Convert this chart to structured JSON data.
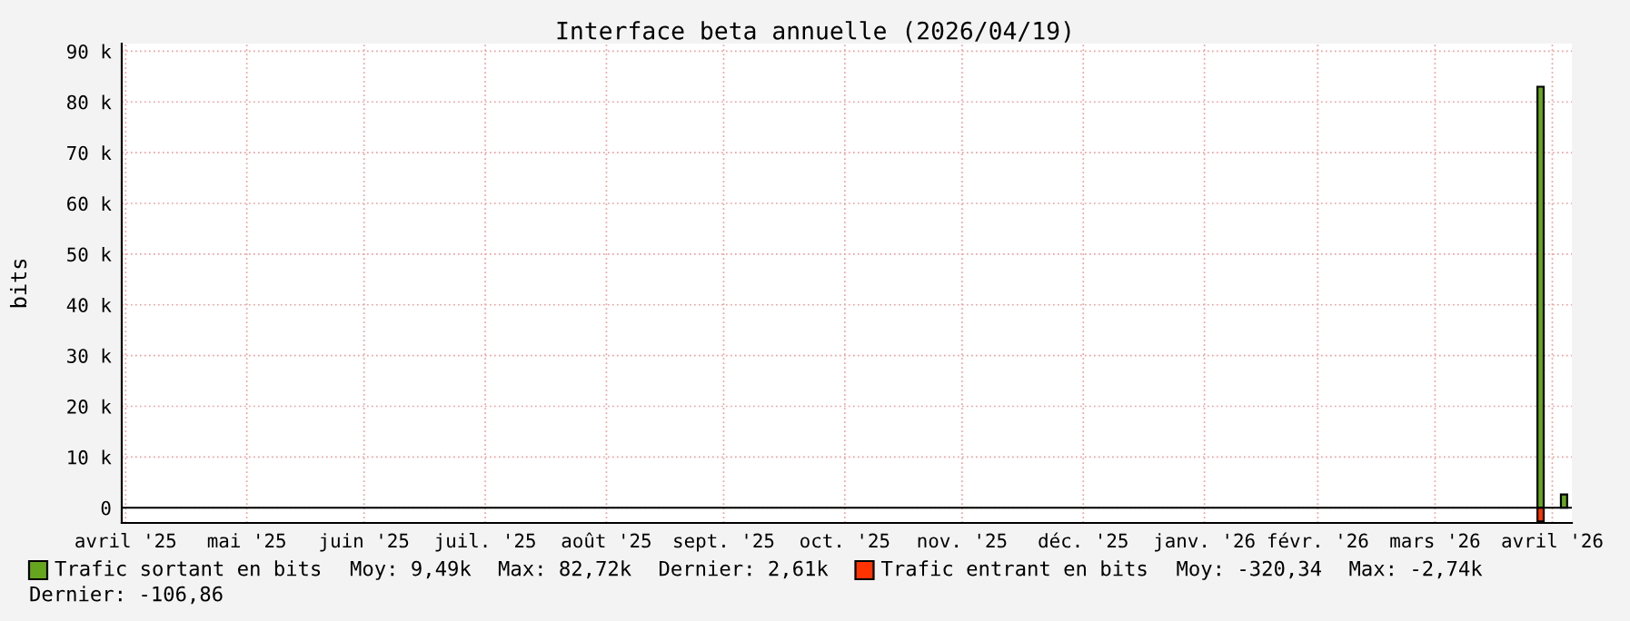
{
  "chart_data": {
    "type": "bar",
    "title": "Interface beta annuelle (2026/04/19)",
    "ylabel": "bits",
    "xlim": [
      "2025-04-14",
      "2026-04-20"
    ],
    "xticks": [
      {
        "value": "2025-04-15",
        "label": "avril '25"
      },
      {
        "value": "2025-05-16",
        "label": "mai '25"
      },
      {
        "value": "2025-06-15",
        "label": "juin '25"
      },
      {
        "value": "2025-07-16",
        "label": "juil. '25"
      },
      {
        "value": "2025-08-16",
        "label": "août '25"
      },
      {
        "value": "2025-09-15",
        "label": "sept. '25"
      },
      {
        "value": "2025-10-16",
        "label": "oct. '25"
      },
      {
        "value": "2025-11-15",
        "label": "nov. '25"
      },
      {
        "value": "2025-12-16",
        "label": "déc. '25"
      },
      {
        "value": "2026-01-16",
        "label": "janv. '26"
      },
      {
        "value": "2026-02-14",
        "label": "févr. '26"
      },
      {
        "value": "2026-03-16",
        "label": "mars '26"
      },
      {
        "value": "2026-04-15",
        "label": "avril '26"
      }
    ],
    "ylim": [
      -3000,
      91500
    ],
    "yticks": [
      0,
      {
        "value": 10000,
        "label": "10 k"
      },
      {
        "value": 20000,
        "label": "20 k"
      },
      {
        "value": 30000,
        "label": "30 k"
      },
      {
        "value": 40000,
        "label": "40 k"
      },
      {
        "value": 50000,
        "label": "50 k"
      },
      {
        "value": 60000,
        "label": "60 k"
      },
      {
        "value": 70000,
        "label": "70 k"
      },
      {
        "value": 80000,
        "label": "80 k"
      },
      {
        "value": 90000,
        "label": "90 k"
      }
    ],
    "grid": true,
    "stacked": true,
    "legend": "bottom",
    "series": [
      {
        "name": "Trafic sortant en bits",
        "color": "#66a61e",
        "x": [
          "2026-04-12",
          "2026-04-18"
        ],
        "values": [
          83000,
          2600
        ]
      },
      {
        "name": "Trafic entrant en bits",
        "color": "#ff3300",
        "x": [
          "2026-04-12"
        ],
        "values": [
          -2700
        ]
      }
    ],
    "annotations": [
      "Moy: 9,49k",
      "Max: 82,72k",
      "Dernier: 2,61k",
      "Moy: -320,34",
      "Max: -2,74k",
      "Dernier: -106,86"
    ]
  }
}
